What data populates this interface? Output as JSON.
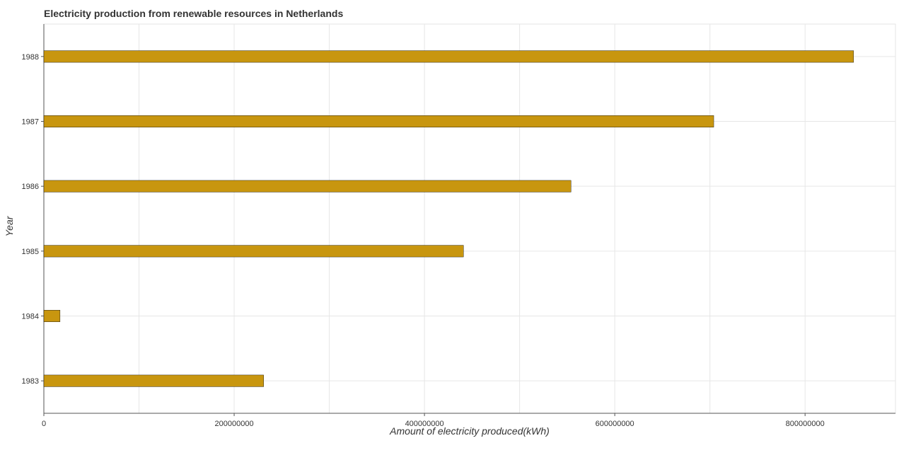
{
  "chart_data": {
    "type": "bar",
    "orientation": "horizontal",
    "title": "Electricity production from renewable resources in Netherlands",
    "xlabel": "Amount of electricity produced(kWh)",
    "ylabel": "Year",
    "categories": [
      "1983",
      "1984",
      "1985",
      "1986",
      "1987",
      "1988"
    ],
    "values": [
      231000000,
      17000000,
      441000000,
      554000000,
      704000000,
      851000000
    ],
    "xlim": [
      0,
      895000000
    ],
    "xticks": [
      0,
      200000000,
      400000000,
      600000000,
      800000000
    ],
    "xtick_labels": [
      "0",
      "200000000",
      "400000000",
      "600000000",
      "800000000"
    ],
    "grid": true,
    "legend": "none",
    "bar_color": "#c8960f"
  }
}
